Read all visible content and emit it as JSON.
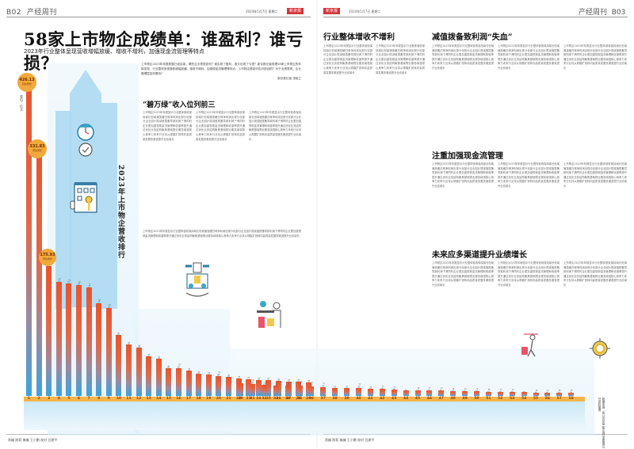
{
  "left_page": {
    "header": {
      "page_code": "B02",
      "section": "产经周刊",
      "date": "2024年5月7日 星期二",
      "badge": "新京报"
    },
    "headline": "58家上市物企成绩单：谁盈利？谁亏损？",
    "subhead": "2023年行业整体呈现营收增幅放缓、增收不增利，加强现金流管理等特点",
    "lead": "上市物企2023年年报披露已经结束，哪些企业表现如何？谁实现了盈利，谁又出现了亏损？新京报记者梳理58家上市物企的年报发现，行业整体呈现营收增幅放缓、增收不增利、加强现金流管理等特点。上市物企是如何应对挑战的？对于业绩表现，企业管理层如何看待？",
    "byline": "新京报记者 张晓兰",
    "section_title": "“碧万绿”收入位列前三",
    "vertical_title": "2023年上市物企营收排行",
    "unit_label": "单位：亿元",
    "footer": "责编 陈莉 美编 王小鹏 校对 吕建平"
  },
  "right_page": {
    "header": {
      "page_code": "B03",
      "section": "产经周刊",
      "date": "2024年5月7日 星期二",
      "badge": "新京报"
    },
    "section_titles": [
      "行业整体增收不增利",
      "减值拨备致利润“失血”",
      "注重加强现金流管理",
      "未来应多渠道提升业绩增长"
    ],
    "source_note": "数据来源：各公司年报 新京报记者根据公开资料整理",
    "footer": "责编 陈莉 美编 王小鹏 校对 吕建平"
  },
  "body_text": {
    "filler": "上市物企2023年年报显示行业整体营收保持增长但增速放缓归母净利润出现分化部分企业因计提减值拨备导致利润下滑同时企业更加重视现金流管理和收缴率提升通过优化业务结构聚焦基础物业服务增强核心竞争力未来行业将从规模扩张转向高质量发展多渠道提升业绩增长"
  },
  "chart_data": {
    "type": "bar",
    "title": "2023年上市物企营收排行",
    "ylabel": "营收（亿元）",
    "unit": "亿元",
    "categories": [
      "1",
      "2",
      "3",
      "4",
      "5",
      "6",
      "7",
      "8",
      "9",
      "10",
      "11",
      "12",
      "13",
      "14",
      "15",
      "16",
      "17",
      "18",
      "19",
      "20",
      "21",
      "22",
      "23",
      "24",
      "25",
      "26",
      "27",
      "28",
      "29",
      "30",
      "31",
      "32",
      "33",
      "34",
      "35",
      "36",
      "37",
      "38",
      "39",
      "40",
      "41",
      "42",
      "43",
      "44",
      "45",
      "46",
      "47",
      "48",
      "49",
      "50",
      "51",
      "52",
      "53",
      "54",
      "55",
      "56",
      "57",
      "58"
    ],
    "values": [
      426.13,
      331.83,
      175.93,
      155,
      153,
      150,
      147,
      126,
      119,
      83,
      70,
      66,
      54,
      50,
      38,
      37.5,
      34,
      30,
      29,
      26.5,
      26,
      24,
      23,
      22,
      21,
      20,
      19,
      19,
      18,
      17,
      16.5,
      15,
      14.5,
      14,
      13.5,
      12.5,
      11.5,
      11,
      11,
      10.5,
      10,
      9.5,
      8.5,
      8,
      7.8,
      7.5,
      7.2,
      6.8,
      6.5,
      6.2,
      5.8,
      5.5,
      5.2,
      5,
      4.6,
      4.2,
      3.8,
      3.4
    ],
    "highlighted": [
      {
        "rank": 1,
        "value": "426.13",
        "note": "同比增长"
      },
      {
        "rank": 2,
        "value": "331.83",
        "note": "同比增长"
      },
      {
        "rank": 3,
        "value": "175.93",
        "note": "同比增长"
      }
    ],
    "ylim": [
      0,
      430
    ],
    "grid": false,
    "legend": "none",
    "colors": {
      "bar_top": "#e8542e",
      "bar_bottom": "#3ca3dd",
      "rank_strip": "#f6b44a",
      "bubble": "#f2a93b"
    }
  }
}
